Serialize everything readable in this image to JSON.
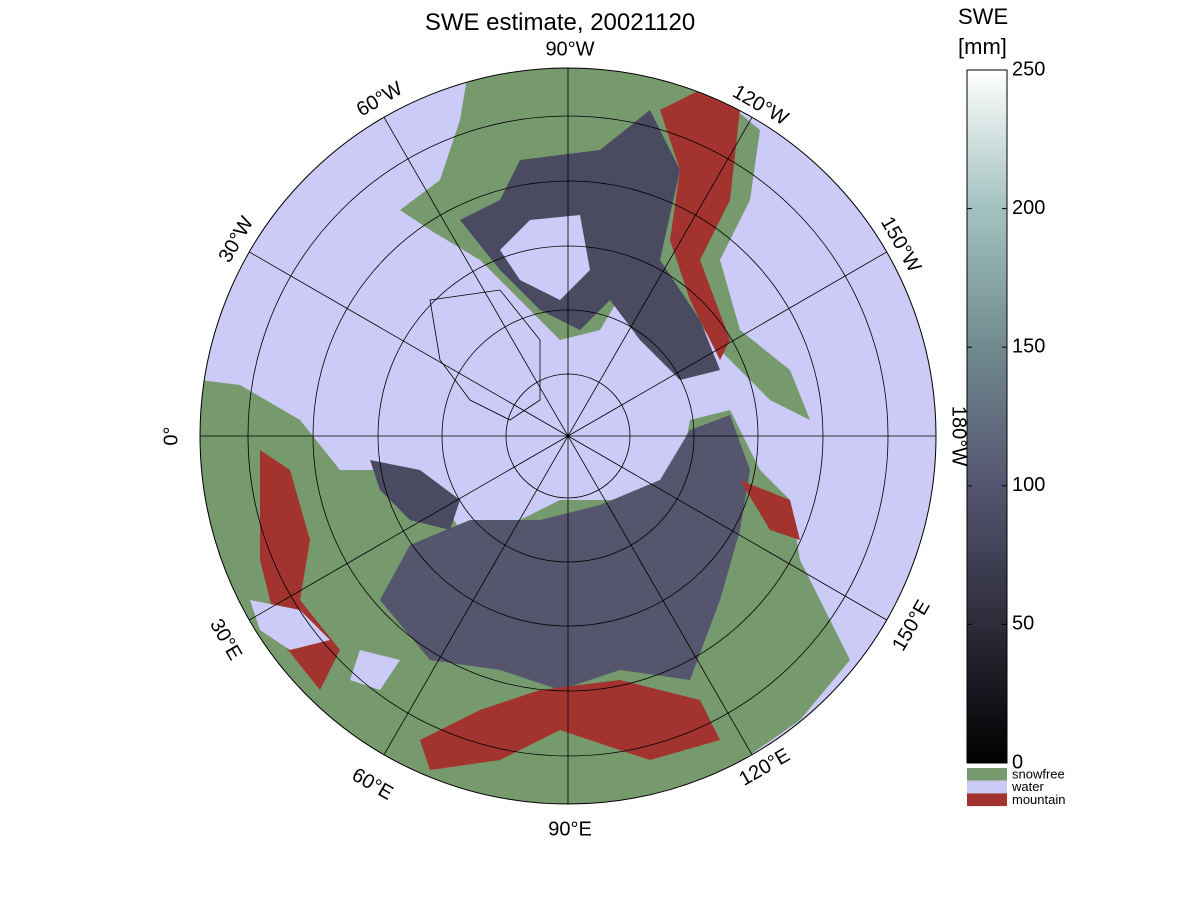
{
  "title": "SWE estimate, 20021120",
  "colorbar": {
    "label_lines": [
      "SWE",
      "[mm]"
    ],
    "lim": [
      0,
      250
    ],
    "ticks": [
      0,
      50,
      100,
      150,
      200,
      250
    ]
  },
  "legend": [
    {
      "name": "snowfree",
      "color": "#76996e"
    },
    {
      "name": "water",
      "color": "#cccbf7"
    },
    {
      "name": "mountain",
      "color": "#a3332f"
    }
  ],
  "meridian_labels": [
    "90°W",
    "120°W",
    "150°W",
    "180°W",
    "150°E",
    "120°E",
    "90°E",
    "60°E",
    "30°E",
    "0°",
    "30°W",
    "60°W"
  ]
}
